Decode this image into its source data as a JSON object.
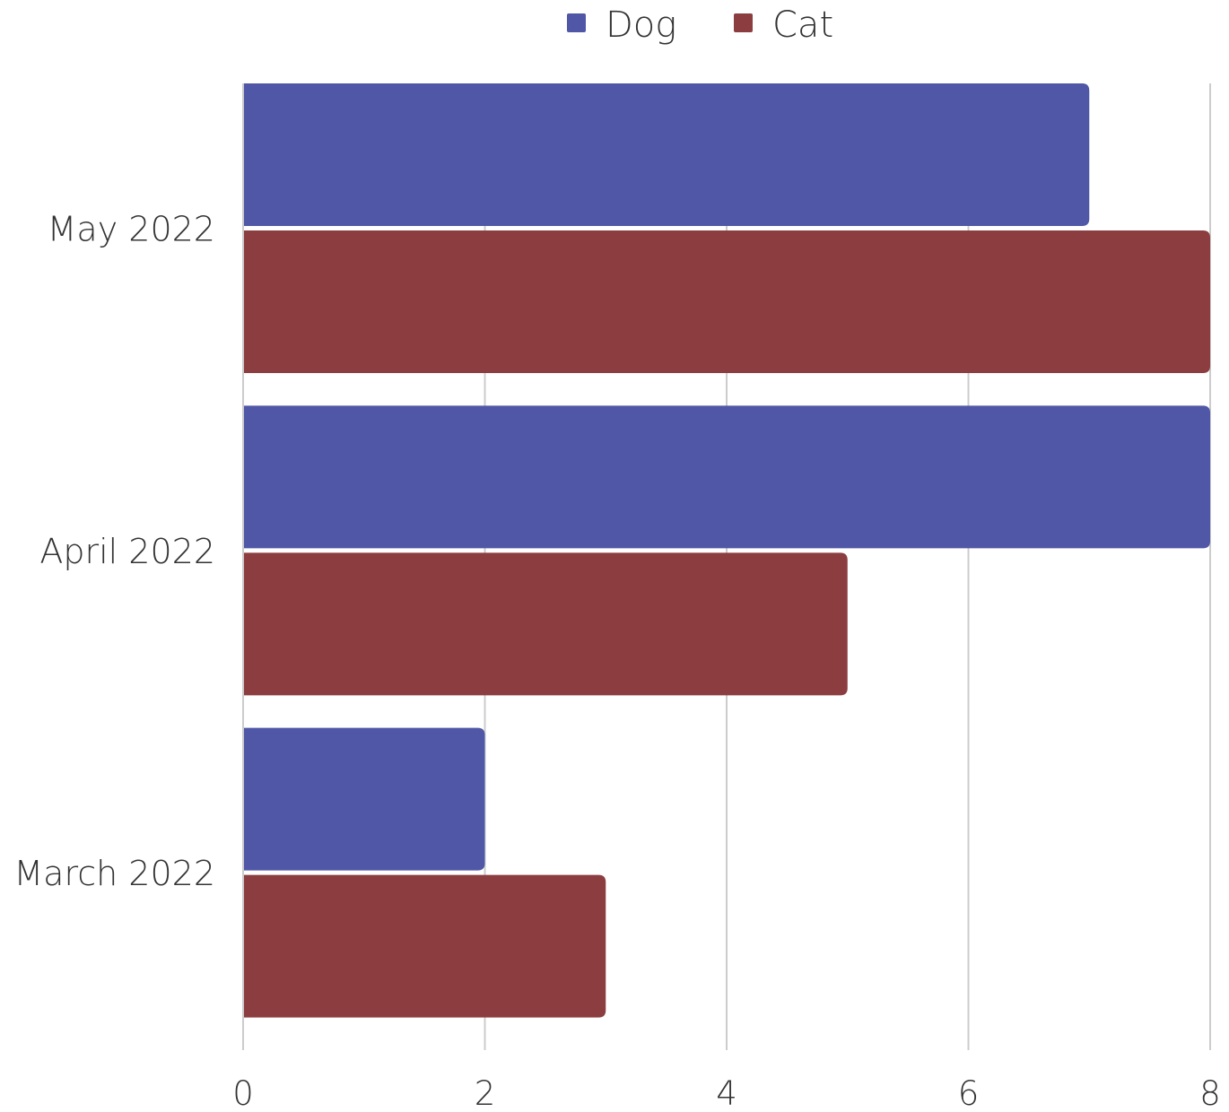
{
  "chart_data": {
    "type": "bar",
    "orientation": "horizontal",
    "categories": [
      "May 2022",
      "April 2022",
      "March 2022"
    ],
    "series": [
      {
        "name": "Dog",
        "color": "#4f57a6",
        "values": [
          7,
          8,
          2
        ]
      },
      {
        "name": "Cat",
        "color": "#8c3d3f",
        "values": [
          8,
          5,
          3
        ]
      }
    ],
    "xlim": [
      0,
      8
    ],
    "xticks": [
      0,
      2,
      4,
      6,
      8
    ],
    "title": "",
    "xlabel": "",
    "ylabel": "",
    "grid": "vertical",
    "legend_position": "top-center"
  }
}
